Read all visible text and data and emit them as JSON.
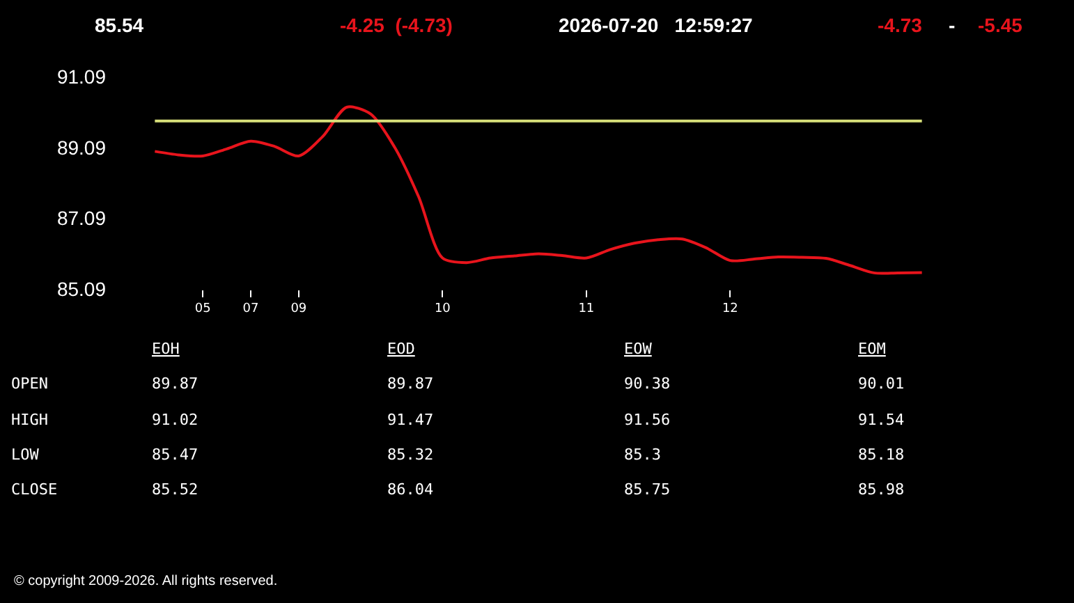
{
  "chart_data": {
    "type": "line",
    "categories": [
      null,
      null,
      "05",
      null,
      "07",
      null,
      "09",
      null,
      null,
      null,
      null,
      null,
      "10",
      null,
      null,
      null,
      null,
      null,
      "11",
      null,
      null,
      null,
      null,
      null,
      "12",
      null,
      null,
      null,
      null,
      null,
      null,
      null,
      null
    ],
    "series": [
      {
        "color": "#e8141c",
        "values": [
          88.98,
          88.88,
          88.85,
          89.05,
          89.27,
          89.12,
          88.85,
          89.4,
          90.23,
          90.04,
          89.1,
          87.7,
          85.96,
          85.83,
          85.96,
          86.02,
          86.08,
          86.03,
          85.96,
          86.2,
          86.38,
          86.48,
          86.5,
          86.25,
          85.89,
          85.93,
          85.99,
          85.98,
          85.95,
          85.75,
          85.54,
          85.54,
          85.55
        ]
      }
    ],
    "ylim": [
      85.09,
      91.09
    ],
    "yticks": [
      85.09,
      87.09,
      89.09,
      91.09
    ],
    "ref_lines": [
      {
        "axis": "y",
        "value": 89.84,
        "color": "#d8e07a"
      }
    ],
    "grid": false,
    "marker": "none",
    "line_style": "solid",
    "annotations": [
      "85.54",
      "-4.25  (-4.73)",
      "2026-07-20   12:59:27",
      "-4.73",
      "-",
      "-5.45",
      "EOH",
      "EOD",
      "EOW",
      "EOM",
      "OPEN",
      "HIGH",
      "LOW",
      "CLOSE",
      "89.87",
      "89.87",
      "90.38",
      "90.01",
      "91.02",
      "91.47",
      "91.56",
      "91.54",
      "85.47",
      "85.32",
      "85.3",
      "85.18",
      "85.52",
      "86.04",
      "85.75",
      "85.98",
      "© copyright 2009-2026. All rights reserved."
    ]
  }
}
